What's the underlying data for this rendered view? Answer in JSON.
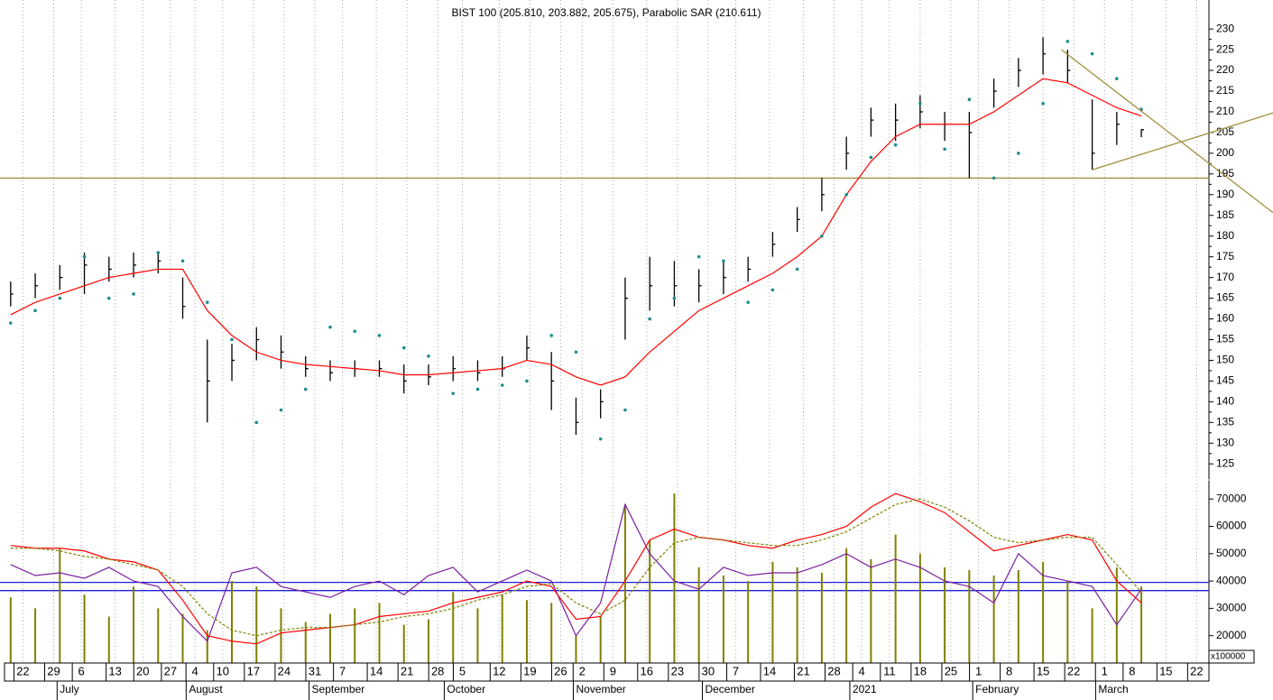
{
  "chart_data": [
    {
      "type": "ohlc",
      "title": "BIST 100 (205.810, 203.882, 205.675), Parabolic SAR (210.611)",
      "x": [
        0,
        4,
        8,
        12,
        16,
        20,
        24,
        28,
        32,
        36,
        40,
        44,
        48,
        52,
        56,
        60,
        64,
        68,
        72,
        76,
        80,
        84,
        88,
        92,
        96,
        100,
        104,
        108,
        112,
        116,
        120,
        124,
        128,
        132,
        136,
        140,
        144,
        148,
        152,
        156,
        160,
        164,
        168,
        172,
        176,
        180,
        184
      ],
      "high": [
        169,
        171,
        173,
        176,
        175,
        176,
        176,
        170,
        155,
        154,
        158,
        156,
        151,
        150,
        150,
        150,
        149,
        149,
        151,
        150,
        151,
        156,
        152,
        141,
        143,
        170,
        175,
        174,
        172,
        174,
        175,
        181,
        187,
        194,
        204,
        211,
        212,
        214,
        210,
        210,
        218,
        223,
        228,
        225,
        213,
        210,
        205.81
      ],
      "low": [
        163,
        165,
        167,
        166,
        169,
        170,
        171,
        160,
        135,
        145,
        150,
        148,
        146,
        145,
        146,
        146,
        142,
        144,
        145,
        145,
        146,
        150,
        138,
        132,
        136,
        155,
        162,
        163,
        164,
        166,
        169,
        175,
        181,
        186,
        196,
        204,
        203,
        206,
        203,
        194,
        211,
        216,
        219,
        217,
        196,
        202,
        203.882
      ],
      "close": [
        166,
        168,
        170,
        173,
        172,
        173,
        174,
        163,
        145,
        150,
        155,
        152,
        148,
        147,
        148,
        148,
        145,
        146,
        148,
        147,
        148,
        153,
        145,
        135,
        140,
        165,
        168,
        168,
        168,
        170,
        172,
        178,
        184,
        190,
        200,
        208,
        208,
        210,
        207,
        205,
        215,
        220,
        224,
        220,
        200,
        207,
        205.675
      ],
      "color": "#000000",
      "series": [
        {
          "style": "line",
          "color": "#ff0000",
          "values": [
            161,
            164,
            166,
            168,
            170,
            171,
            172,
            172,
            162,
            156,
            152,
            150,
            149,
            148.5,
            148,
            147.5,
            146.5,
            146.5,
            147,
            147.5,
            148,
            150,
            149,
            146,
            144,
            146,
            152,
            157,
            162,
            165,
            168,
            171,
            175,
            180,
            190,
            198,
            204,
            207,
            207,
            207,
            210,
            214,
            218,
            217,
            214,
            211,
            209
          ]
        },
        {
          "style": "dots",
          "color": "#1f8c8c",
          "values": [
            159,
            162,
            165,
            175,
            165,
            166,
            176,
            174,
            164,
            155,
            135,
            138,
            143,
            158,
            157,
            156,
            153,
            151,
            142,
            143,
            144,
            145,
            156,
            152,
            131,
            138,
            160,
            165,
            175,
            174,
            164,
            167,
            172,
            180,
            190,
            199,
            202,
            212,
            201,
            213,
            194,
            200,
            212,
            227,
            224,
            218,
            210.611
          ]
        }
      ],
      "hlines": [
        194
      ],
      "hline_color": "#a09040",
      "trendlines": [
        {
          "x": [
            171,
            206
          ],
          "y": [
            225,
            185
          ]
        },
        {
          "x": [
            176,
            206
          ],
          "y": [
            196,
            210
          ]
        }
      ],
      "trend_color": "#a09040",
      "xlim": [
        -1,
        195
      ],
      "ylim": [
        122,
        237
      ],
      "yticks": [
        125,
        130,
        135,
        140,
        145,
        150,
        155,
        160,
        165,
        170,
        175,
        180,
        185,
        190,
        195,
        200,
        205,
        210,
        215,
        220,
        225,
        230
      ],
      "xticks": [
        {
          "value": 2,
          "label": "22"
        },
        {
          "value": 7,
          "label": "29"
        },
        {
          "value": 11.5,
          "label": "6"
        },
        {
          "value": 17,
          "label": "13"
        },
        {
          "value": 21.5,
          "label": "20"
        },
        {
          "value": 26,
          "label": "27"
        },
        {
          "value": 30,
          "label": "4"
        },
        {
          "value": 34.5,
          "label": "10"
        },
        {
          "value": 39.5,
          "label": "17"
        },
        {
          "value": 44.5,
          "label": "24"
        },
        {
          "value": 49.5,
          "label": "31"
        },
        {
          "value": 54,
          "label": "7"
        },
        {
          "value": 59.5,
          "label": "14"
        },
        {
          "value": 64.5,
          "label": "21"
        },
        {
          "value": 69.5,
          "label": "28"
        },
        {
          "value": 73.5,
          "label": "5"
        },
        {
          "value": 79.5,
          "label": "12"
        },
        {
          "value": 84.5,
          "label": "19"
        },
        {
          "value": 89.5,
          "label": "26"
        },
        {
          "value": 93,
          "label": "2"
        },
        {
          "value": 98,
          "label": "9"
        },
        {
          "value": 103.5,
          "label": "16"
        },
        {
          "value": 108.5,
          "label": "23"
        },
        {
          "value": 113.5,
          "label": "30"
        },
        {
          "value": 118,
          "label": "7"
        },
        {
          "value": 123.5,
          "label": "14"
        },
        {
          "value": 129,
          "label": "21"
        },
        {
          "value": 134,
          "label": "28"
        },
        {
          "value": 138.5,
          "label": "4"
        },
        {
          "value": 143,
          "label": "11"
        },
        {
          "value": 148,
          "label": "18"
        },
        {
          "value": 153,
          "label": "25"
        },
        {
          "value": 157.5,
          "label": "1"
        },
        {
          "value": 162.5,
          "label": "8"
        },
        {
          "value": 168,
          "label": "15"
        },
        {
          "value": 173,
          "label": "22"
        },
        {
          "value": 178,
          "label": "1"
        },
        {
          "value": 182.5,
          "label": "8"
        },
        {
          "value": 188,
          "label": "15"
        },
        {
          "value": 193,
          "label": "22"
        }
      ],
      "months": [
        {
          "value": 8,
          "label": "July"
        },
        {
          "value": 29,
          "label": "August"
        },
        {
          "value": 49,
          "label": "September"
        },
        {
          "value": 71,
          "label": "October"
        },
        {
          "value": 92,
          "label": "November"
        },
        {
          "value": 113,
          "label": "December"
        },
        {
          "value": 137,
          "label": "2021"
        },
        {
          "value": 157,
          "label": "February"
        },
        {
          "value": 177,
          "label": "March"
        }
      ],
      "grid": true
    },
    {
      "type": "volume",
      "unit_label": "x100000",
      "x": [
        0,
        4,
        8,
        12,
        16,
        20,
        24,
        28,
        32,
        36,
        40,
        44,
        48,
        52,
        56,
        60,
        64,
        68,
        72,
        76,
        80,
        84,
        88,
        92,
        96,
        100,
        104,
        108,
        112,
        116,
        120,
        124,
        128,
        132,
        136,
        140,
        144,
        148,
        152,
        156,
        160,
        164,
        168,
        172,
        176,
        180,
        184
      ],
      "values": [
        34000,
        30000,
        52000,
        35000,
        27000,
        38000,
        30000,
        28000,
        22000,
        40000,
        38000,
        30000,
        25000,
        28000,
        30000,
        32000,
        24000,
        26000,
        36000,
        30000,
        35000,
        33000,
        32000,
        20000,
        27000,
        68000,
        55000,
        72000,
        45000,
        42000,
        40000,
        47000,
        45000,
        43000,
        52000,
        48000,
        57000,
        50000,
        45000,
        44000,
        42000,
        44000,
        47000,
        40000,
        30000,
        45000,
        38000
      ],
      "color": "#808000",
      "series": [
        {
          "style": "line",
          "color": "#7a1fa0",
          "values": [
            46000,
            42000,
            43000,
            41000,
            45000,
            40000,
            38000,
            27000,
            18000,
            43000,
            45000,
            38000,
            36000,
            34000,
            38000,
            40000,
            35000,
            42000,
            45000,
            36000,
            40000,
            44000,
            40000,
            20000,
            32000,
            68000,
            50000,
            40000,
            37000,
            45000,
            42000,
            43000,
            43000,
            46000,
            50000,
            45000,
            48000,
            45000,
            40000,
            38000,
            32000,
            50000,
            42000,
            40000,
            38000,
            24000,
            37000
          ]
        },
        {
          "style": "line",
          "color": "#ff0000",
          "values": [
            53000,
            52000,
            52000,
            51000,
            48000,
            47000,
            44000,
            33000,
            20000,
            18000,
            17000,
            21000,
            22000,
            23000,
            24000,
            27000,
            28000,
            29000,
            32000,
            34000,
            36000,
            40000,
            38000,
            26000,
            27000,
            40000,
            55000,
            59000,
            56000,
            55000,
            53000,
            52000,
            55000,
            57000,
            60000,
            67000,
            72000,
            69000,
            65000,
            58000,
            51000,
            53000,
            55000,
            57000,
            55000,
            40000,
            32000
          ]
        },
        {
          "style": "dashed",
          "color": "#808000",
          "values": [
            52000,
            52000,
            51000,
            49000,
            48000,
            46000,
            44000,
            38000,
            28000,
            22000,
            20000,
            22000,
            23000,
            23000,
            24000,
            25000,
            27000,
            28000,
            30000,
            33000,
            35000,
            38000,
            39000,
            32000,
            28000,
            33000,
            45000,
            54000,
            56000,
            55000,
            54000,
            53000,
            53000,
            55000,
            58000,
            63000,
            68000,
            70000,
            67000,
            62000,
            56000,
            54000,
            55000,
            56000,
            56000,
            46000,
            36000
          ]
        }
      ],
      "hlines": [
        39500,
        36500
      ],
      "hline_color": "#2020d0",
      "ylim": [
        10000,
        76000
      ],
      "yticks": [
        20000,
        30000,
        40000,
        50000,
        60000,
        70000
      ]
    }
  ]
}
